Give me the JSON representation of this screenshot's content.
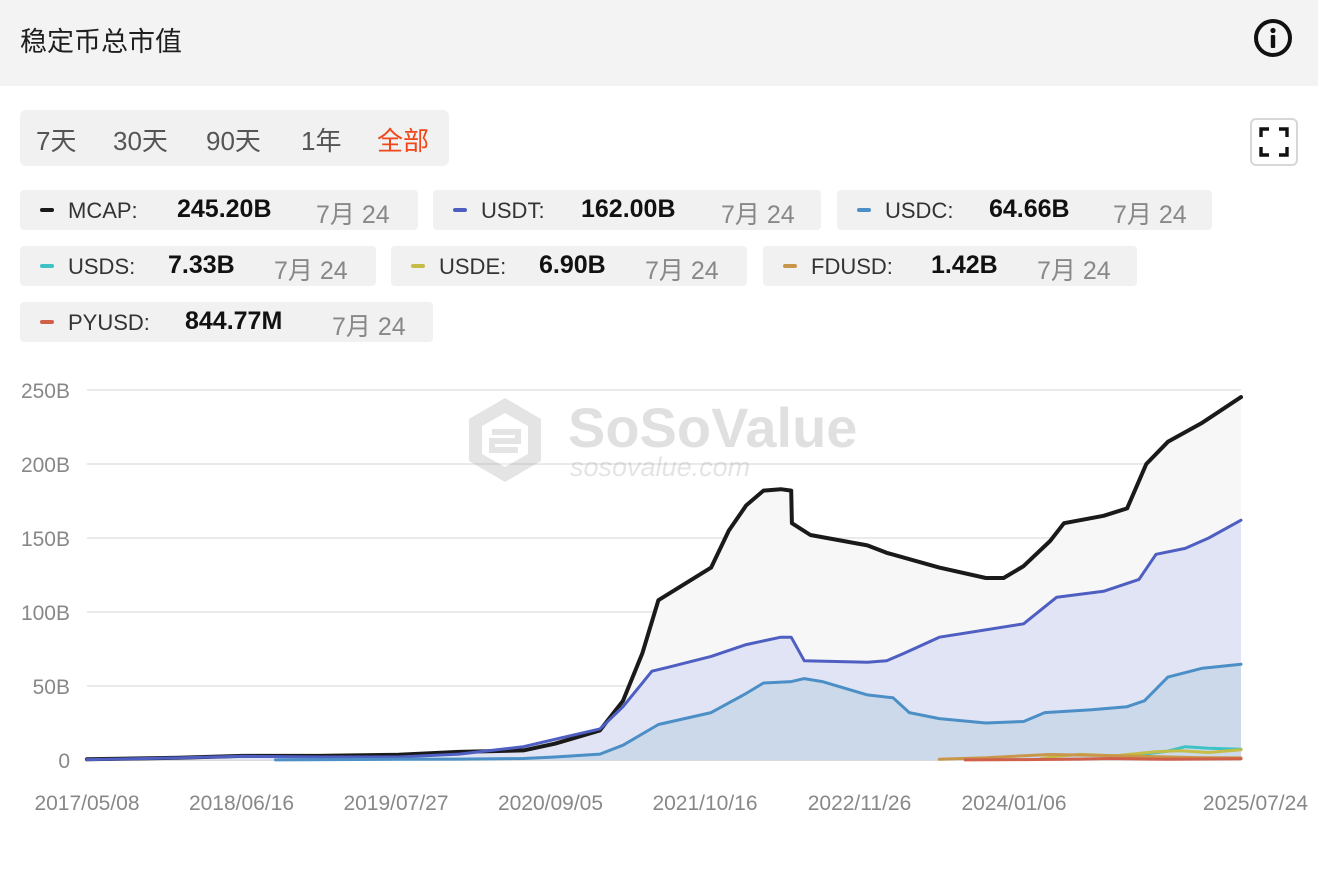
{
  "header": {
    "title": "稳定币总市值",
    "info_icon": "info-circle-icon"
  },
  "range_tabs": {
    "items": [
      {
        "label": "7天",
        "active": false
      },
      {
        "label": "30天",
        "active": false
      },
      {
        "label": "90天",
        "active": false
      },
      {
        "label": "1年",
        "active": false
      },
      {
        "label": "全部",
        "active": true
      }
    ]
  },
  "fullscreen_icon": "fullscreen-icon",
  "legend": [
    {
      "name": "MCAP:",
      "value": "245.20B",
      "date": "7月 24",
      "color": "#1a1a1a"
    },
    {
      "name": "USDT:",
      "value": "162.00B",
      "date": "7月 24",
      "color": "#4f5fc1"
    },
    {
      "name": "USDC:",
      "value": "64.66B",
      "date": "7月 24",
      "color": "#4b8fc6"
    },
    {
      "name": "USDS:",
      "value": "7.33B",
      "date": "7月 24",
      "color": "#3fc2c6"
    },
    {
      "name": "USDE:",
      "value": "6.90B",
      "date": "7月 24",
      "color": "#c6bd46"
    },
    {
      "name": "FDUSD:",
      "value": "1.42B",
      "date": "7月 24",
      "color": "#c8974a"
    },
    {
      "name": "PYUSD:",
      "value": "844.77M",
      "date": "7月 24",
      "color": "#d0604a"
    }
  ],
  "watermark": {
    "brand": "SoSoValue",
    "url": "sosovalue.com"
  },
  "chart_data": {
    "type": "area",
    "x_ticks": [
      "2017/05/08",
      "2018/06/16",
      "2019/07/27",
      "2020/09/05",
      "2021/10/16",
      "2022/11/26",
      "2024/01/06",
      "2025/07/24"
    ],
    "y_ticks": [
      "0",
      "50B",
      "100B",
      "150B",
      "200B",
      "250B"
    ],
    "ylim": [
      0,
      250
    ],
    "xlim": [
      "2017-05-08",
      "2025-07-24"
    ],
    "grid": true,
    "series": [
      {
        "name": "MCAP",
        "color": "#1a1a1a",
        "fill": "#f7f7f8",
        "points": [
          [
            "2017-05-08",
            0.5
          ],
          [
            "2018-01-01",
            1.5
          ],
          [
            "2018-06-16",
            2.8
          ],
          [
            "2019-01-01",
            2.8
          ],
          [
            "2019-07-27",
            3.5
          ],
          [
            "2019-12-31",
            5.5
          ],
          [
            "2020-06-15",
            6.5
          ],
          [
            "2020-09-05",
            11
          ],
          [
            "2020-12-31",
            20
          ],
          [
            "2021-03-01",
            40
          ],
          [
            "2021-04-20",
            72
          ],
          [
            "2021-06-01",
            108
          ],
          [
            "2021-10-16",
            130
          ],
          [
            "2021-12-01",
            155
          ],
          [
            "2022-01-15",
            172
          ],
          [
            "2022-03-01",
            182
          ],
          [
            "2022-04-15",
            183
          ],
          [
            "2022-05-12",
            182
          ],
          [
            "2022-05-14",
            160
          ],
          [
            "2022-07-01",
            152
          ],
          [
            "2022-11-26",
            145
          ],
          [
            "2023-01-15",
            140
          ],
          [
            "2023-06-01",
            130
          ],
          [
            "2023-09-30",
            123
          ],
          [
            "2023-11-15",
            123
          ],
          [
            "2024-01-06",
            131
          ],
          [
            "2024-03-15",
            148
          ],
          [
            "2024-04-20",
            160
          ],
          [
            "2024-08-01",
            165
          ],
          [
            "2024-10-01",
            170
          ],
          [
            "2024-11-20",
            200
          ],
          [
            "2025-01-15",
            215
          ],
          [
            "2025-04-15",
            228
          ],
          [
            "2025-07-24",
            245.2
          ]
        ]
      },
      {
        "name": "USDT",
        "color": "#4f5fc1",
        "fill": "#e1e4f4",
        "points": [
          [
            "2017-05-08",
            0.3
          ],
          [
            "2018-01-01",
            1.4
          ],
          [
            "2018-06-16",
            2.6
          ],
          [
            "2019-01-01",
            2.0
          ],
          [
            "2019-07-27",
            2.0
          ],
          [
            "2019-12-31",
            4.0
          ],
          [
            "2020-06-15",
            9
          ],
          [
            "2020-09-05",
            14
          ],
          [
            "2020-12-31",
            21
          ],
          [
            "2021-03-01",
            36
          ],
          [
            "2021-05-15",
            60
          ],
          [
            "2021-07-01",
            63
          ],
          [
            "2021-10-16",
            70
          ],
          [
            "2022-01-15",
            78
          ],
          [
            "2022-04-15",
            83
          ],
          [
            "2022-05-12",
            83
          ],
          [
            "2022-06-15",
            67
          ],
          [
            "2022-11-26",
            66
          ],
          [
            "2023-01-15",
            67
          ],
          [
            "2023-03-01",
            72
          ],
          [
            "2023-06-01",
            83
          ],
          [
            "2024-01-06",
            92
          ],
          [
            "2024-04-01",
            110
          ],
          [
            "2024-08-01",
            114
          ],
          [
            "2024-11-01",
            122
          ],
          [
            "2024-12-15",
            139
          ],
          [
            "2025-03-01",
            143
          ],
          [
            "2025-05-01",
            150
          ],
          [
            "2025-07-24",
            162
          ]
        ]
      },
      {
        "name": "USDC",
        "color": "#4b8fc6",
        "fill": "#cbd9ea",
        "points": [
          [
            "2018-09-10",
            0.1
          ],
          [
            "2019-07-27",
            0.5
          ],
          [
            "2019-12-31",
            0.6
          ],
          [
            "2020-06-15",
            1.0
          ],
          [
            "2020-09-05",
            2.0
          ],
          [
            "2020-12-31",
            4.0
          ],
          [
            "2021-03-01",
            10
          ],
          [
            "2021-06-01",
            24
          ],
          [
            "2021-10-16",
            32
          ],
          [
            "2022-01-15",
            45
          ],
          [
            "2022-03-01",
            52
          ],
          [
            "2022-05-12",
            53
          ],
          [
            "2022-06-15",
            55
          ],
          [
            "2022-08-01",
            53
          ],
          [
            "2022-11-26",
            44
          ],
          [
            "2023-02-01",
            42
          ],
          [
            "2023-03-15",
            32
          ],
          [
            "2023-06-01",
            28
          ],
          [
            "2023-09-30",
            25
          ],
          [
            "2024-01-06",
            26
          ],
          [
            "2024-03-01",
            32
          ],
          [
            "2024-07-01",
            34
          ],
          [
            "2024-10-01",
            36
          ],
          [
            "2024-11-15",
            40
          ],
          [
            "2025-01-15",
            56
          ],
          [
            "2025-04-15",
            62
          ],
          [
            "2025-07-24",
            64.66
          ]
        ]
      },
      {
        "name": "USDS",
        "color": "#3fc2c6",
        "points": [
          [
            "2024-09-18",
            1.2
          ],
          [
            "2024-11-15",
            4
          ],
          [
            "2025-01-15",
            6
          ],
          [
            "2025-03-01",
            9
          ],
          [
            "2025-05-01",
            8
          ],
          [
            "2025-07-24",
            7.33
          ]
        ]
      },
      {
        "name": "USDE",
        "color": "#c6bd46",
        "points": [
          [
            "2024-02-19",
            0.8
          ],
          [
            "2024-04-01",
            2.5
          ],
          [
            "2024-06-01",
            3.8
          ],
          [
            "2024-09-01",
            2.9
          ],
          [
            "2024-12-15",
            5.6
          ],
          [
            "2025-02-15",
            6.2
          ],
          [
            "2025-05-01",
            5.1
          ],
          [
            "2025-07-24",
            6.9
          ]
        ]
      },
      {
        "name": "FDUSD",
        "color": "#c8974a",
        "points": [
          [
            "2023-06-01",
            0.5
          ],
          [
            "2023-10-01",
            1.5
          ],
          [
            "2024-01-06",
            2.9
          ],
          [
            "2024-03-15",
            3.7
          ],
          [
            "2024-07-01",
            3.2
          ],
          [
            "2024-11-01",
            2.5
          ],
          [
            "2025-04-01",
            1.6
          ],
          [
            "2025-07-24",
            1.42
          ]
        ]
      },
      {
        "name": "PYUSD",
        "color": "#d0604a",
        "points": [
          [
            "2023-08-07",
            0.1
          ],
          [
            "2024-01-06",
            0.3
          ],
          [
            "2024-06-01",
            0.6
          ],
          [
            "2024-08-15",
            1.0
          ],
          [
            "2025-01-15",
            0.5
          ],
          [
            "2025-07-24",
            0.845
          ]
        ]
      }
    ]
  }
}
